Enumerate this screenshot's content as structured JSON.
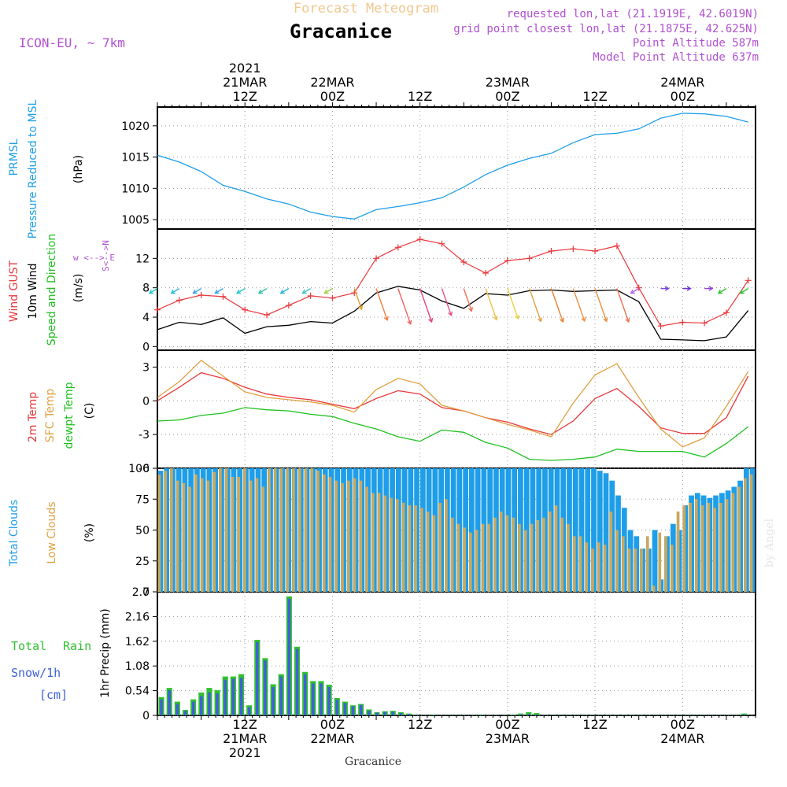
{
  "header": {
    "title": "Forecast Meteogram",
    "location": "Gracanice",
    "model": "ICON-EU, ~ 7km",
    "requested": "requested lon,lat (21.1919E, 42.6019N)",
    "gridpoint": "grid point closest lon,lat (21.1875E, 42.625N)",
    "point_alt": "Point Altitude 587m",
    "model_alt": "Model Point Altitude 637m",
    "footer": "Gracanice",
    "credit": "by Angel"
  },
  "time_axis": {
    "top_labels": [
      {
        "lines": [
          "2021",
          "21MAR",
          "12Z"
        ],
        "hour": 12
      },
      {
        "lines": [
          "22MAR",
          "00Z"
        ],
        "hour": 24
      },
      {
        "lines": [
          "12Z"
        ],
        "hour": 36
      },
      {
        "lines": [
          "23MAR",
          "00Z"
        ],
        "hour": 48
      },
      {
        "lines": [
          "12Z"
        ],
        "hour": 60
      },
      {
        "lines": [
          "24MAR",
          "00Z"
        ],
        "hour": 72
      }
    ],
    "bottom_labels": [
      {
        "lines": [
          "12Z",
          "21MAR",
          "2021"
        ],
        "hour": 12
      },
      {
        "lines": [
          "00Z",
          "22MAR"
        ],
        "hour": 24
      },
      {
        "lines": [
          "12Z"
        ],
        "hour": 36
      },
      {
        "lines": [
          "00Z",
          "23MAR"
        ],
        "hour": 48
      },
      {
        "lines": [
          "12Z"
        ],
        "hour": 60
      },
      {
        "lines": [
          "00Z",
          "24MAR"
        ],
        "hour": 72
      }
    ]
  },
  "panel_labels": {
    "pressure": {
      "l1": "PRMSL",
      "l2": "Pressure Reduced to MSL",
      "unit": "(hPa)"
    },
    "wind": {
      "l1": "Wind GUST",
      "l2": "10m Wind",
      "l3": "Speed and Direction",
      "unit": "(m/s)",
      "compass": "w <--> E",
      "compass_v": "S<-->N"
    },
    "temp": {
      "l1": "2m Temp",
      "l2": "SFC Temp",
      "l3": "dewpt Temp",
      "unit": "(C)"
    },
    "clouds": {
      "l1": "Total Clouds",
      "l2": "Low Clouds",
      "unit": "(%)"
    },
    "precip": {
      "l1": "Total",
      "l1b": "Rain",
      "l2": "Snow/1h",
      "l3": "[cm]",
      "unit": "1hr Precip (mm)"
    }
  },
  "colors": {
    "pressure": "#1e9ee8",
    "gust": "#e8383c",
    "wind": "#000000",
    "t2m": "#e8383c",
    "tsfc": "#e0a040",
    "dewpt": "#20c020",
    "total_clouds": "#1e9ee8",
    "low_clouds": "#c8a860",
    "rain": "#30c030",
    "snow": "#4060d8",
    "label_purple": "#b050d0",
    "title_orange": "#f0c890"
  },
  "chart_data": [
    {
      "type": "line",
      "title": "PRMSL Pressure Reduced to MSL",
      "ylabel": "(hPa)",
      "ylim": [
        1003.5,
        1023
      ],
      "yticks": [
        1005,
        1010,
        1015,
        1020
      ],
      "x_hours": [
        0,
        3,
        6,
        9,
        12,
        15,
        18,
        21,
        24,
        27,
        30,
        33,
        36,
        39,
        42,
        45,
        48,
        51,
        54,
        57,
        60,
        63,
        66,
        69,
        72,
        75,
        78,
        81
      ],
      "series": [
        {
          "name": "PRMSL",
          "values": [
            1015.3,
            1014.2,
            1012.7,
            1010.5,
            1009.5,
            1008.3,
            1007.5,
            1006.2,
            1005.5,
            1005.1,
            1006.6,
            1007.1,
            1007.7,
            1008.5,
            1010.2,
            1012.2,
            1013.7,
            1014.8,
            1015.6,
            1017.3,
            1018.6,
            1018.8,
            1019.5,
            1021.2,
            1022.0,
            1021.9,
            1021.5,
            1020.6
          ]
        }
      ]
    },
    {
      "type": "line",
      "title": "Wind GUST / 10m Wind Speed and Direction",
      "ylabel": "(m/s)",
      "ylim": [
        -0.5,
        16
      ],
      "yticks": [
        0,
        4,
        8,
        12
      ],
      "x_hours": [
        0,
        3,
        6,
        9,
        12,
        15,
        18,
        21,
        24,
        27,
        30,
        33,
        36,
        39,
        42,
        45,
        48,
        51,
        54,
        57,
        60,
        63,
        66,
        69,
        72,
        75,
        78,
        81
      ],
      "series": [
        {
          "name": "Wind GUST",
          "values": [
            5.0,
            6.3,
            7.0,
            6.8,
            5.0,
            4.3,
            5.6,
            6.9,
            6.6,
            7.3,
            12.0,
            13.5,
            14.6,
            14.0,
            11.5,
            10.0,
            11.7,
            12.0,
            13.0,
            13.3,
            13.0,
            13.7,
            8.0,
            2.8,
            3.3,
            3.2,
            4.6,
            9.0
          ]
        },
        {
          "name": "10m Wind",
          "values": [
            2.3,
            3.3,
            3.0,
            3.9,
            1.8,
            2.7,
            2.9,
            3.4,
            3.2,
            4.8,
            7.3,
            8.2,
            7.7,
            6.2,
            5.2,
            7.2,
            7.0,
            7.6,
            7.7,
            7.5,
            7.6,
            7.7,
            6.1,
            1.0,
            0.9,
            0.8,
            1.3,
            4.9
          ]
        }
      ],
      "wind_barbs": {
        "speed_y": 7.9,
        "colors": [
          "#20c8c8",
          "#20b8d8",
          "#3aa0e8",
          "#3aa0e8",
          "#20c8c8",
          "#30c0a0",
          "#20b8d8",
          "#40c0c0",
          "#a0d040",
          "#e8a030",
          "#f08040",
          "#f06060",
          "#e84080",
          "#e85080",
          "#f07050",
          "#f0c040",
          "#e8d040",
          "#e0a040",
          "#f08030",
          "#f09040",
          "#e89040",
          "#f07050",
          "#b060f0",
          "#8040e0",
          "#7030d8",
          "#9040d8",
          "#30c030",
          "#30c030"
        ]
      }
    },
    {
      "type": "line",
      "title": "2m Temp / SFC Temp / dewpt Temp",
      "ylabel": "(C)",
      "ylim": [
        -6,
        4.5
      ],
      "yticks": [
        -6,
        -3,
        0,
        3
      ],
      "x_hours": [
        0,
        3,
        6,
        9,
        12,
        15,
        18,
        21,
        24,
        27,
        30,
        33,
        36,
        39,
        42,
        45,
        48,
        51,
        54,
        57,
        60,
        63,
        66,
        69,
        72,
        75,
        78,
        81
      ],
      "series": [
        {
          "name": "2m Temp",
          "values": [
            0.0,
            1.2,
            2.5,
            2.0,
            1.2,
            0.6,
            0.3,
            0.1,
            -0.3,
            -0.7,
            0.2,
            0.9,
            0.6,
            -0.6,
            -0.9,
            -1.5,
            -1.9,
            -2.5,
            -3.0,
            -1.8,
            0.2,
            1.1,
            -0.5,
            -2.4,
            -2.9,
            -2.9,
            -1.5,
            2.2
          ]
        },
        {
          "name": "SFC Temp",
          "values": [
            0.3,
            1.7,
            3.6,
            2.2,
            0.8,
            0.3,
            0.1,
            -0.1,
            -0.4,
            -1.0,
            1.0,
            2.0,
            1.5,
            -0.4,
            -0.9,
            -1.5,
            -2.1,
            -2.6,
            -3.2,
            -0.2,
            2.3,
            3.3,
            0.3,
            -2.5,
            -4.1,
            -3.3,
            -0.5,
            2.6
          ]
        },
        {
          "name": "dewpt Temp",
          "values": [
            -1.8,
            -1.7,
            -1.3,
            -1.1,
            -0.6,
            -0.8,
            -0.9,
            -1.2,
            -1.4,
            -2.0,
            -2.5,
            -3.2,
            -3.6,
            -2.6,
            -2.8,
            -3.7,
            -4.2,
            -5.2,
            -5.3,
            -5.2,
            -5.0,
            -4.3,
            -4.5,
            -4.5,
            -4.5,
            -5.0,
            -3.8,
            -2.3
          ]
        }
      ]
    },
    {
      "type": "bar",
      "title": "Total Clouds / Low Clouds",
      "ylabel": "(%)",
      "ylim": [
        0,
        100
      ],
      "yticks": [
        0,
        25,
        50,
        75,
        100
      ],
      "series": [
        {
          "name": "Total Clouds",
          "values": [
            98,
            100,
            100,
            100,
            100,
            100,
            100,
            100,
            100,
            100,
            100,
            100,
            100,
            100,
            100,
            100,
            100,
            100,
            100,
            100,
            100,
            100,
            100,
            100,
            100,
            100,
            100,
            100,
            100,
            100,
            100,
            100,
            100,
            100,
            100,
            100,
            100,
            100,
            100,
            100,
            100,
            100,
            100,
            100,
            100,
            100,
            100,
            100,
            100,
            100,
            100,
            100,
            100,
            100,
            100,
            100,
            100,
            100,
            100,
            100,
            100,
            100,
            100,
            100,
            100,
            100,
            100,
            100,
            100,
            100,
            100,
            100,
            98,
            96,
            90,
            78,
            68,
            50,
            45,
            35,
            35,
            50,
            10,
            45,
            55,
            50,
            70,
            78,
            80,
            78,
            76,
            78,
            80,
            82,
            85,
            90,
            100,
            100
          ]
        },
        {
          "name": "Low Clouds",
          "values": [
            95,
            98,
            100,
            90,
            88,
            85,
            95,
            92,
            90,
            97,
            100,
            100,
            93,
            93,
            100,
            90,
            92,
            85,
            100,
            100,
            100,
            100,
            100,
            100,
            100,
            100,
            98,
            95,
            93,
            90,
            88,
            90,
            92,
            90,
            85,
            80,
            80,
            78,
            76,
            75,
            72,
            70,
            70,
            68,
            65,
            62,
            72,
            75,
            60,
            55,
            52,
            48,
            50,
            55,
            55,
            60,
            65,
            62,
            60,
            55,
            50,
            55,
            58,
            60,
            65,
            70,
            60,
            55,
            45,
            45,
            40,
            35,
            40,
            38,
            65,
            50,
            45,
            35,
            35,
            35,
            45,
            5,
            48,
            45,
            38,
            65,
            70,
            72,
            75,
            70,
            72,
            68,
            72,
            75,
            80,
            85,
            92,
            95
          ]
        }
      ]
    },
    {
      "type": "bar",
      "title": "1hr Precip",
      "ylabel": "1hr Precip (mm)",
      "ylim": [
        0,
        2.7
      ],
      "yticks": [
        0,
        0.54,
        1.08,
        1.62,
        2.16,
        2.7
      ],
      "series": [
        {
          "name": "Total Rain",
          "values": [
            0.4,
            0.6,
            0.3,
            0.12,
            0.35,
            0.5,
            0.6,
            0.55,
            0.85,
            0.85,
            0.9,
            0.22,
            1.65,
            1.25,
            0.68,
            0.9,
            2.6,
            1.5,
            0.95,
            0.75,
            0.75,
            0.67,
            0.38,
            0.3,
            0.22,
            0.25,
            0.13,
            0.07,
            0.09,
            0.1,
            0.07,
            0.04,
            0.02,
            0.01,
            0.02,
            0.01,
            0.01,
            0.01,
            0.01,
            0.01,
            0.02,
            0.01,
            0.01,
            0.01,
            0.02,
            0.04,
            0.07,
            0.05,
            0.01,
            0.01,
            0.01,
            0.01,
            0.01,
            0.01,
            0.01,
            0.01,
            0.01,
            0.01,
            0.01,
            0.01,
            0.01,
            0.01,
            0.01,
            0.01,
            0.01,
            0.01,
            0.01,
            0.01,
            0.01,
            0.01,
            0.01,
            0.01,
            0.01,
            0.04
          ]
        },
        {
          "name": "Snow/1h",
          "values": [
            0.35,
            0.55,
            0.25,
            0.1,
            0.3,
            0.42,
            0.5,
            0.48,
            0.78,
            0.8,
            0.82,
            0.18,
            1.6,
            1.2,
            0.62,
            0.85,
            2.55,
            1.45,
            0.9,
            0.7,
            0.7,
            0.62,
            0.34,
            0.27,
            0.2,
            0.23,
            0.1,
            0.06,
            0.08,
            0.08,
            0.05,
            0.03,
            0.02,
            0.01,
            0.01,
            0.01,
            0.01,
            0.01,
            0.01,
            0.01,
            0.01,
            0.01,
            0.01,
            0.01,
            0.01,
            0.02,
            0.03,
            0.02,
            0.01,
            0.01,
            0.01,
            0.01,
            0.01,
            0.01,
            0.01,
            0.01,
            0.01,
            0.01,
            0.01,
            0.01,
            0.01,
            0.01,
            0.01,
            0.01,
            0.01,
            0.01,
            0.01,
            0.01,
            0.01,
            0.01,
            0.01,
            0.01,
            0.01,
            0.02
          ]
        }
      ]
    }
  ]
}
